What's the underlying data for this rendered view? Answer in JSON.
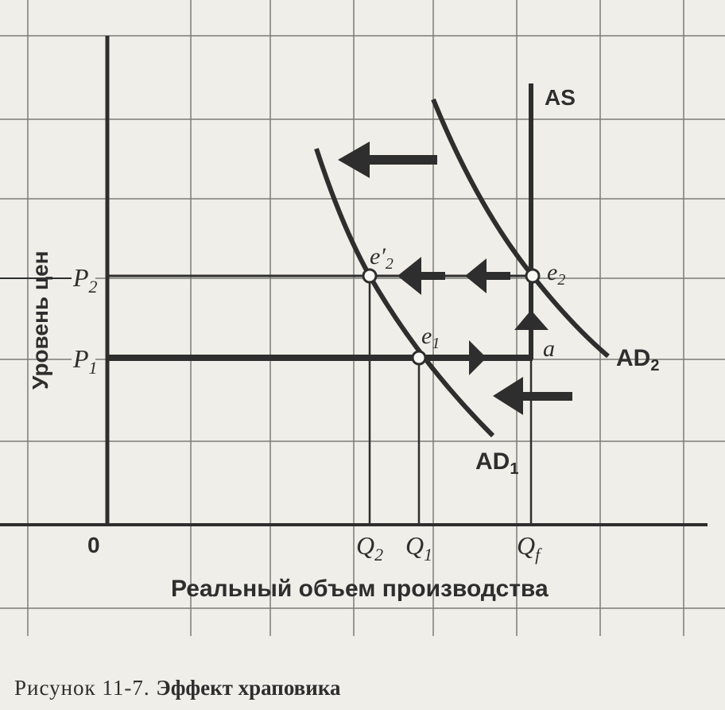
{
  "axes": {
    "y_label": "Уровень цен",
    "x_label": "Реальный объем производства",
    "origin": "0"
  },
  "y_ticks": [
    {
      "sym": "P",
      "sub": "2"
    },
    {
      "sym": "P",
      "sub": "1"
    }
  ],
  "x_ticks": [
    {
      "sym": "Q",
      "sub": "2"
    },
    {
      "sym": "Q",
      "sub": "1"
    },
    {
      "sym": "Q",
      "sub": "f"
    }
  ],
  "curves": {
    "as": "AS",
    "ad1": {
      "name": "AD",
      "sub": "1"
    },
    "ad2": {
      "name": "AD",
      "sub": "2"
    }
  },
  "points": {
    "e1": {
      "sym": "e",
      "sub": "1"
    },
    "e2": {
      "sym": "e",
      "sub": "2"
    },
    "e2p": {
      "sym": "e′",
      "sub": "2"
    },
    "a": "a"
  },
  "caption": {
    "prefix": "Рисунок 11-7.",
    "title": "Эффект храповика"
  },
  "colors": {
    "ink": "#2e2e2e",
    "paper": "#efeee8"
  }
}
